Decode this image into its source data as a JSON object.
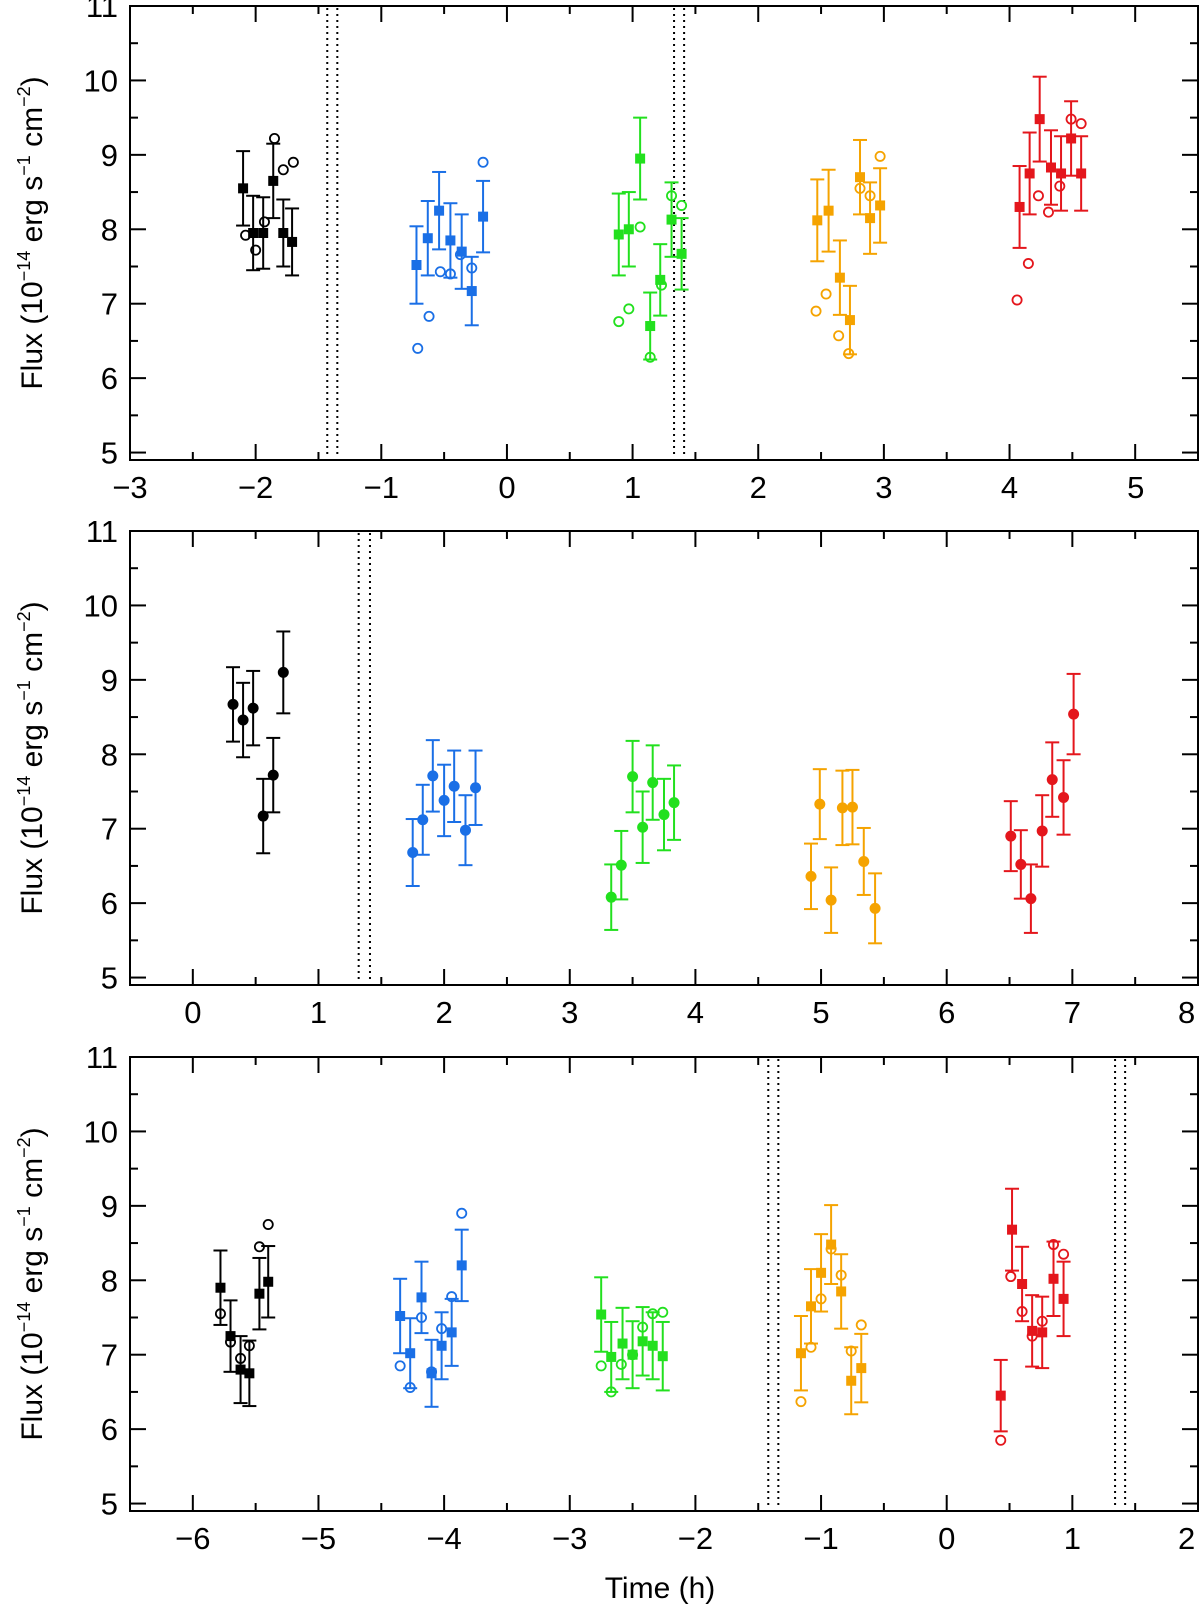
{
  "figure": {
    "xlabel_bottom": "Time (h)"
  },
  "colors": {
    "black": "#000000",
    "blue": "#1a6fe6",
    "green": "#22e01e",
    "orange": "#f5a300",
    "red": "#e4161c"
  },
  "chart_data": [
    {
      "type": "scatter",
      "panel": "top",
      "xlim": [
        -3,
        5.5
      ],
      "ylim": [
        4.9,
        11
      ],
      "xticks": [
        -3,
        -2,
        -1,
        0,
        1,
        2,
        3,
        4,
        5
      ],
      "xtick_labels": [
        "−3",
        "−2",
        "−1",
        "0",
        "1",
        "2",
        "3",
        "4",
        "5"
      ],
      "yticks": [
        5,
        6,
        7,
        8,
        9,
        10,
        11
      ],
      "ytick_labels": [
        "5",
        "6",
        "7",
        "8",
        "9",
        "10",
        "11"
      ],
      "ylabel": {
        "base": "Flux (10",
        "exp1": "−14",
        "mid": " erg s",
        "exp2": "−1",
        "mid2": " cm",
        "exp3": "−2",
        "end": ")"
      },
      "xlabel": "",
      "vlines": [
        -1.43,
        -1.35,
        1.33,
        1.41
      ],
      "series": [
        {
          "name": "black",
          "color": "#000000",
          "filled": [
            [
              -2.1,
              8.55,
              0.5
            ],
            [
              -2.02,
              7.95,
              0.5
            ],
            [
              -1.94,
              7.95,
              0.48
            ],
            [
              -1.86,
              8.65,
              0.5
            ],
            [
              -1.78,
              7.95,
              0.45
            ],
            [
              -1.71,
              7.83,
              0.45
            ]
          ],
          "open": [
            [
              -2.08,
              7.92
            ],
            [
              -2.0,
              7.72
            ],
            [
              -1.93,
              8.1
            ],
            [
              -1.85,
              9.22
            ],
            [
              -1.78,
              8.8
            ],
            [
              -1.7,
              8.9
            ]
          ]
        },
        {
          "name": "blue",
          "color": "#1a6fe6",
          "filled": [
            [
              -0.72,
              7.52,
              0.52
            ],
            [
              -0.63,
              7.88,
              0.5
            ],
            [
              -0.54,
              8.25,
              0.52
            ],
            [
              -0.45,
              7.85,
              0.5
            ],
            [
              -0.36,
              7.7,
              0.5
            ],
            [
              -0.28,
              7.17,
              0.46
            ],
            [
              -0.19,
              8.17,
              0.48
            ]
          ],
          "open": [
            [
              -0.71,
              6.4
            ],
            [
              -0.62,
              6.83
            ],
            [
              -0.53,
              7.43
            ],
            [
              -0.45,
              7.4
            ],
            [
              -0.37,
              7.66
            ],
            [
              -0.28,
              7.48
            ],
            [
              -0.19,
              8.9
            ]
          ]
        },
        {
          "name": "green",
          "color": "#22e01e",
          "filled": [
            [
              0.89,
              7.93,
              0.55
            ],
            [
              0.97,
              8.0,
              0.5
            ],
            [
              1.06,
              8.95,
              0.55
            ],
            [
              1.14,
              6.7,
              0.45
            ],
            [
              1.22,
              7.32,
              0.48
            ],
            [
              1.31,
              8.13,
              0.5
            ],
            [
              1.39,
              7.67,
              0.48
            ]
          ],
          "open": [
            [
              0.89,
              6.76
            ],
            [
              0.97,
              6.93
            ],
            [
              1.06,
              8.03
            ],
            [
              1.14,
              6.28
            ],
            [
              1.23,
              7.25
            ],
            [
              1.31,
              8.45
            ],
            [
              1.39,
              8.32
            ]
          ]
        },
        {
          "name": "orange",
          "color": "#f5a300",
          "filled": [
            [
              2.47,
              8.12,
              0.55
            ],
            [
              2.56,
              8.25,
              0.55
            ],
            [
              2.65,
              7.35,
              0.5
            ],
            [
              2.73,
              6.78,
              0.46
            ],
            [
              2.81,
              8.7,
              0.5
            ],
            [
              2.89,
              8.15,
              0.48
            ],
            [
              2.97,
              8.32,
              0.5
            ]
          ],
          "open": [
            [
              2.46,
              6.9
            ],
            [
              2.54,
              7.13
            ],
            [
              2.64,
              6.57
            ],
            [
              2.72,
              6.33
            ],
            [
              2.81,
              8.55
            ],
            [
              2.89,
              8.45
            ],
            [
              2.97,
              8.98
            ]
          ]
        },
        {
          "name": "red",
          "color": "#e4161c",
          "filled": [
            [
              4.08,
              8.3,
              0.55
            ],
            [
              4.16,
              8.75,
              0.55
            ],
            [
              4.24,
              9.48,
              0.57
            ],
            [
              4.33,
              8.83,
              0.5
            ],
            [
              4.41,
              8.75,
              0.5
            ],
            [
              4.49,
              9.22,
              0.5
            ],
            [
              4.57,
              8.75,
              0.5
            ]
          ],
          "open": [
            [
              4.06,
              7.05
            ],
            [
              4.15,
              7.54
            ],
            [
              4.23,
              8.45
            ],
            [
              4.31,
              8.23
            ],
            [
              4.4,
              8.58
            ],
            [
              4.49,
              9.48
            ],
            [
              4.57,
              9.42
            ]
          ]
        }
      ]
    },
    {
      "type": "scatter",
      "panel": "middle",
      "xlim": [
        -0.5,
        8.0
      ],
      "ylim": [
        4.9,
        11
      ],
      "xticks": [
        0,
        1,
        2,
        3,
        4,
        5,
        6,
        7,
        8
      ],
      "xtick_labels": [
        "0",
        "1",
        "2",
        "3",
        "4",
        "5",
        "6",
        "7",
        "8"
      ],
      "yticks": [
        5,
        6,
        7,
        8,
        9,
        10,
        11
      ],
      "ytick_labels": [
        "5",
        "6",
        "7",
        "8",
        "9",
        "10",
        "11"
      ],
      "ylabel": {
        "base": "Flux (10",
        "exp1": "−14",
        "mid": " erg s",
        "exp2": "−1",
        "mid2": " cm",
        "exp3": "−2",
        "end": ")"
      },
      "xlabel": "",
      "vlines": [
        1.32,
        1.41
      ],
      "series": [
        {
          "name": "black",
          "color": "#000000",
          "filled": [
            [
              0.32,
              8.67,
              0.5
            ],
            [
              0.4,
              8.46,
              0.5
            ],
            [
              0.48,
              8.62,
              0.5
            ],
            [
              0.56,
              7.17,
              0.5
            ],
            [
              0.64,
              7.72,
              0.5
            ],
            [
              0.72,
              9.1,
              0.55
            ]
          ],
          "open": []
        },
        {
          "name": "blue",
          "color": "#1a6fe6",
          "filled": [
            [
              1.75,
              6.68,
              0.45
            ],
            [
              1.83,
              7.12,
              0.47
            ],
            [
              1.91,
              7.71,
              0.48
            ],
            [
              2.0,
              7.38,
              0.48
            ],
            [
              2.08,
              7.57,
              0.48
            ],
            [
              2.17,
              6.98,
              0.47
            ],
            [
              2.25,
              7.55,
              0.5
            ]
          ],
          "open": []
        },
        {
          "name": "green",
          "color": "#22e01e",
          "filled": [
            [
              3.33,
              6.08,
              0.44
            ],
            [
              3.41,
              6.51,
              0.46
            ],
            [
              3.5,
              7.7,
              0.48
            ],
            [
              3.58,
              7.02,
              0.48
            ],
            [
              3.66,
              7.62,
              0.5
            ],
            [
              3.75,
              7.19,
              0.48
            ],
            [
              3.83,
              7.35,
              0.5
            ]
          ],
          "open": []
        },
        {
          "name": "orange",
          "color": "#f5a300",
          "filled": [
            [
              4.92,
              6.36,
              0.44
            ],
            [
              4.99,
              7.33,
              0.47
            ],
            [
              5.08,
              6.04,
              0.44
            ],
            [
              5.17,
              7.28,
              0.5
            ],
            [
              5.25,
              7.29,
              0.5
            ],
            [
              5.34,
              6.56,
              0.45
            ],
            [
              5.43,
              5.93,
              0.47
            ]
          ],
          "open": []
        },
        {
          "name": "red",
          "color": "#e4161c",
          "filled": [
            [
              6.51,
              6.9,
              0.47
            ],
            [
              6.59,
              6.52,
              0.46
            ],
            [
              6.67,
              6.06,
              0.46
            ],
            [
              6.76,
              6.97,
              0.48
            ],
            [
              6.84,
              7.66,
              0.5
            ],
            [
              6.93,
              7.42,
              0.5
            ],
            [
              7.01,
              8.54,
              0.54
            ]
          ],
          "open": []
        }
      ]
    },
    {
      "type": "scatter",
      "panel": "bottom",
      "xlim": [
        -6.5,
        2.0
      ],
      "ylim": [
        4.9,
        11
      ],
      "xticks": [
        -6,
        -5,
        -4,
        -3,
        -2,
        -1,
        0,
        1,
        2
      ],
      "xtick_labels": [
        "−6",
        "−5",
        "−4",
        "−3",
        "−2",
        "−1",
        "0",
        "1",
        "2"
      ],
      "yticks": [
        5,
        6,
        7,
        8,
        9,
        10,
        11
      ],
      "ytick_labels": [
        "5",
        "6",
        "7",
        "8",
        "9",
        "10",
        "11"
      ],
      "ylabel": {
        "base": "Flux (10",
        "exp1": "−14",
        "mid": " erg s",
        "exp2": "−1",
        "mid2": " cm",
        "exp3": "−2",
        "end": ")"
      },
      "xlabel": "Time (h)",
      "vlines": [
        -1.42,
        -1.34,
        1.34,
        1.42
      ],
      "series": [
        {
          "name": "black",
          "color": "#000000",
          "filled": [
            [
              -5.78,
              7.9,
              0.5
            ],
            [
              -5.7,
              7.25,
              0.48
            ],
            [
              -5.62,
              6.8,
              0.45
            ],
            [
              -5.55,
              6.75,
              0.44
            ],
            [
              -5.47,
              7.82,
              0.48
            ],
            [
              -5.4,
              7.98,
              0.48
            ]
          ],
          "open": [
            [
              -5.78,
              7.55
            ],
            [
              -5.7,
              7.17
            ],
            [
              -5.62,
              6.95
            ],
            [
              -5.55,
              7.12
            ],
            [
              -5.47,
              8.45
            ],
            [
              -5.4,
              8.75
            ]
          ]
        },
        {
          "name": "blue",
          "color": "#1a6fe6",
          "filled": [
            [
              -4.35,
              7.52,
              0.5
            ],
            [
              -4.27,
              7.02,
              0.47
            ],
            [
              -4.18,
              7.77,
              0.48
            ],
            [
              -4.1,
              6.75,
              0.45
            ],
            [
              -4.02,
              7.12,
              0.45
            ],
            [
              -3.94,
              7.3,
              0.45
            ],
            [
              -3.86,
              8.2,
              0.48
            ]
          ],
          "open": [
            [
              -4.35,
              6.85
            ],
            [
              -4.27,
              6.56
            ],
            [
              -4.18,
              7.5
            ],
            [
              -4.1,
              6.77
            ],
            [
              -4.02,
              7.35
            ],
            [
              -3.94,
              7.78
            ],
            [
              -3.86,
              8.9
            ]
          ]
        },
        {
          "name": "green",
          "color": "#22e01e",
          "filled": [
            [
              -2.75,
              7.54,
              0.5
            ],
            [
              -2.67,
              6.97,
              0.47
            ],
            [
              -2.58,
              7.15,
              0.48
            ],
            [
              -2.5,
              7.0,
              0.45
            ],
            [
              -2.42,
              7.18,
              0.46
            ],
            [
              -2.34,
              7.12,
              0.45
            ],
            [
              -2.26,
              6.98,
              0.46
            ]
          ],
          "open": [
            [
              -2.75,
              6.85
            ],
            [
              -2.67,
              6.5
            ],
            [
              -2.59,
              6.87
            ],
            [
              -2.5,
              7.0
            ],
            [
              -2.42,
              7.37
            ],
            [
              -2.34,
              7.55
            ],
            [
              -2.26,
              7.57
            ]
          ]
        },
        {
          "name": "orange",
          "color": "#f5a300",
          "filled": [
            [
              -1.16,
              7.02,
              0.5
            ],
            [
              -1.08,
              7.65,
              0.5
            ],
            [
              -1.0,
              8.1,
              0.52
            ],
            [
              -0.92,
              8.48,
              0.53
            ],
            [
              -0.84,
              7.85,
              0.5
            ],
            [
              -0.76,
              6.65,
              0.45
            ],
            [
              -0.68,
              6.82,
              0.46
            ]
          ],
          "open": [
            [
              -1.16,
              6.37
            ],
            [
              -1.08,
              7.1
            ],
            [
              -1.0,
              7.75
            ],
            [
              -0.92,
              8.42
            ],
            [
              -0.84,
              8.07
            ],
            [
              -0.76,
              7.05
            ],
            [
              -0.68,
              7.4
            ]
          ]
        },
        {
          "name": "red",
          "color": "#e4161c",
          "filled": [
            [
              0.43,
              6.45,
              0.48
            ],
            [
              0.52,
              8.68,
              0.55
            ],
            [
              0.6,
              7.95,
              0.5
            ],
            [
              0.68,
              7.32,
              0.48
            ],
            [
              0.76,
              7.3,
              0.48
            ],
            [
              0.85,
              8.02,
              0.5
            ],
            [
              0.93,
              7.75,
              0.5
            ]
          ],
          "open": [
            [
              0.43,
              5.85
            ],
            [
              0.51,
              8.05
            ],
            [
              0.6,
              7.58
            ],
            [
              0.68,
              7.25
            ],
            [
              0.76,
              7.45
            ],
            [
              0.85,
              8.48
            ],
            [
              0.93,
              8.35
            ]
          ]
        }
      ]
    }
  ]
}
